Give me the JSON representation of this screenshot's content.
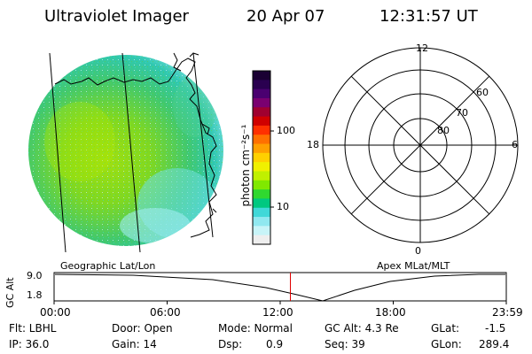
{
  "header": {
    "instrument": "Ultraviolet Imager",
    "date": "20 Apr 07",
    "time": "12:31:57 UT"
  },
  "colorbar": {
    "unit_label": "photon cm⁻²s⁻¹",
    "tick_100": "100",
    "tick_10": "10",
    "colors": [
      "#1a0033",
      "#2a0050",
      "#4a0070",
      "#7a0070",
      "#a00030",
      "#d00000",
      "#ff3000",
      "#ff7000",
      "#ffa000",
      "#ffd000",
      "#f0f000",
      "#c0f000",
      "#80e800",
      "#30d830",
      "#00c880",
      "#40d8d8",
      "#90e8f0",
      "#c8f4f8",
      "#eeeeee"
    ]
  },
  "labels": {
    "left_projection": "Geographic Lat/Lon",
    "right_projection": "Apex MLat/MLT"
  },
  "polar": {
    "mlt_top": "12",
    "mlt_left": "18",
    "mlt_right": "6",
    "mlt_bottom": "0",
    "lat_60": "60",
    "lat_70": "70",
    "lat_80": "80"
  },
  "timeline": {
    "ylabel": "GC Alt",
    "y_top": "9.0",
    "y_bottom": "1.8",
    "ticks": [
      "00:00",
      "06:00",
      "12:00",
      "18:00",
      "23:59"
    ],
    "current_marker_hours": 12.53
  },
  "info": {
    "flt": "Flt: LBHL",
    "ip": "IP: 36.0",
    "door": "Door: Open",
    "gain": "Gain: 14",
    "mode": "Mode: Normal",
    "dsp_label": "Dsp:",
    "dsp_value": "0.9",
    "gc_alt": "GC Alt: 4.3 Re",
    "seq": "Seq: 39",
    "glat_label": "GLat:",
    "glat_value": "-1.5",
    "glon_label": "GLon:",
    "glon_value": "289.4"
  }
}
